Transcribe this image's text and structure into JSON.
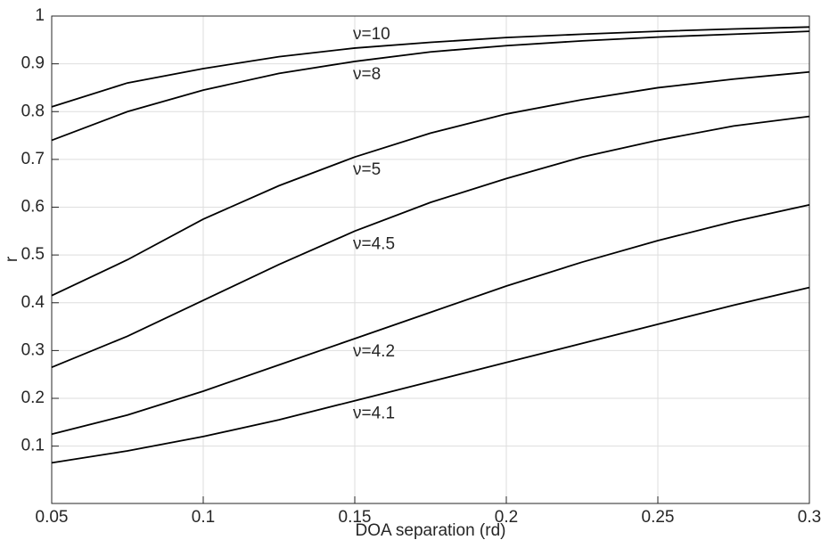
{
  "chart_data": {
    "type": "line",
    "xlabel": "DOA separation (rd)",
    "ylabel": "r",
    "x": [
      0.05,
      0.075,
      0.1,
      0.125,
      0.15,
      0.175,
      0.2,
      0.225,
      0.25,
      0.275,
      0.3
    ],
    "series": [
      {
        "name": "ν=10",
        "color": "#000000",
        "values": [
          0.81,
          0.86,
          0.89,
          0.915,
          0.933,
          0.945,
          0.955,
          0.962,
          0.968,
          0.973,
          0.977
        ]
      },
      {
        "name": "ν=8",
        "color": "#000000",
        "values": [
          0.74,
          0.8,
          0.845,
          0.88,
          0.905,
          0.925,
          0.938,
          0.948,
          0.956,
          0.962,
          0.968
        ]
      },
      {
        "name": "ν=5",
        "color": "#000000",
        "values": [
          0.415,
          0.49,
          0.575,
          0.645,
          0.705,
          0.755,
          0.795,
          0.825,
          0.85,
          0.868,
          0.883
        ]
      },
      {
        "name": "ν=4.5",
        "color": "#000000",
        "values": [
          0.265,
          0.33,
          0.405,
          0.48,
          0.55,
          0.61,
          0.66,
          0.705,
          0.74,
          0.77,
          0.79
        ]
      },
      {
        "name": "ν=4.2",
        "color": "#000000",
        "values": [
          0.125,
          0.165,
          0.215,
          0.27,
          0.325,
          0.38,
          0.435,
          0.485,
          0.53,
          0.57,
          0.605
        ]
      },
      {
        "name": "ν=4.1",
        "color": "#000000",
        "values": [
          0.065,
          0.09,
          0.12,
          0.155,
          0.195,
          0.235,
          0.275,
          0.315,
          0.355,
          0.395,
          0.432
        ]
      }
    ],
    "xlim": [
      0.05,
      0.3
    ],
    "xticks": [
      0.05,
      0.1,
      0.15,
      0.2,
      0.25,
      0.3
    ],
    "ylim": [
      -0.02,
      1
    ],
    "yticks": [
      0.1,
      0.2,
      0.3,
      0.4,
      0.5,
      0.6,
      0.7,
      0.8,
      0.9,
      1
    ],
    "grid": true
  }
}
